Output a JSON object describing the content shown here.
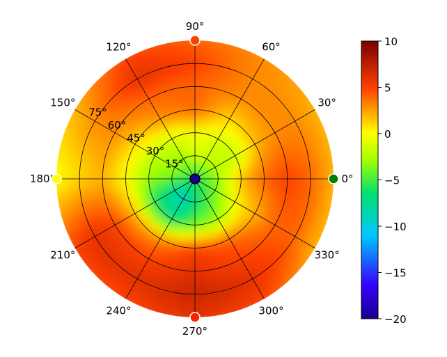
{
  "chart_data": {
    "type": "heatmap",
    "subtype": "polar",
    "title": "",
    "angle_unit": "degrees",
    "angle_ticks": [
      "0°",
      "30°",
      "60°",
      "90°",
      "120°",
      "150°",
      "180°",
      "210°",
      "240°",
      "270°",
      "300°",
      "330°"
    ],
    "radial_ticks": [
      "15°",
      "30°",
      "45°",
      "60°",
      "75°"
    ],
    "radial_range": [
      0,
      90
    ],
    "grid": true,
    "colormap": "jet",
    "colorbar": {
      "range": [
        -20,
        10
      ],
      "ticks": [
        "10",
        "5",
        "0",
        "−5",
        "−10",
        "−15",
        "−20"
      ],
      "tick_values": [
        10,
        5,
        0,
        -5,
        -10,
        -15,
        -20
      ],
      "placement": "right"
    },
    "field": {
      "description_units": "value by radius band (degrees) and angle (degrees)",
      "radius_bands": [
        0,
        15,
        30,
        45,
        60,
        75,
        90
      ],
      "angle_bins": [
        0,
        30,
        60,
        90,
        120,
        150,
        180,
        210,
        240,
        270,
        300,
        330
      ],
      "values": [
        [
          -6,
          -6,
          -6,
          -6,
          -6,
          -6,
          -6,
          -6,
          -6,
          -6,
          -6,
          -6
        ],
        [
          -3,
          -2,
          -2,
          -1,
          -3,
          -3,
          -4,
          -8,
          -9,
          -7,
          -5,
          -4
        ],
        [
          2,
          -2,
          -1,
          0,
          -1,
          -2,
          -3,
          -6,
          -7,
          -4,
          -3,
          0
        ],
        [
          4,
          2,
          1,
          4,
          3,
          1,
          0,
          2,
          3,
          5,
          4,
          2
        ],
        [
          5,
          3,
          3,
          4,
          4,
          3,
          2,
          5,
          5,
          6,
          5,
          4
        ],
        [
          4,
          3,
          3,
          5,
          6,
          3,
          1,
          6,
          6,
          7,
          6,
          4
        ],
        [
          2,
          2,
          3,
          4,
          5,
          2,
          0,
          5,
          5,
          6,
          5,
          2
        ]
      ]
    },
    "markers": [
      {
        "angle": 0,
        "radius": 90,
        "color": "#008000",
        "edge": "#ffffff"
      },
      {
        "angle": 90,
        "radius": 90,
        "color": "#ff4000",
        "edge": "#ffffff"
      },
      {
        "angle": 180,
        "radius": 90,
        "color": "#ffff00",
        "edge": "#ffffff"
      },
      {
        "angle": 270,
        "radius": 90,
        "color": "#ff2000",
        "edge": "#ffffff"
      },
      {
        "angle": 0,
        "radius": 0,
        "color": "#1a008c",
        "edge": "#000000"
      }
    ]
  }
}
